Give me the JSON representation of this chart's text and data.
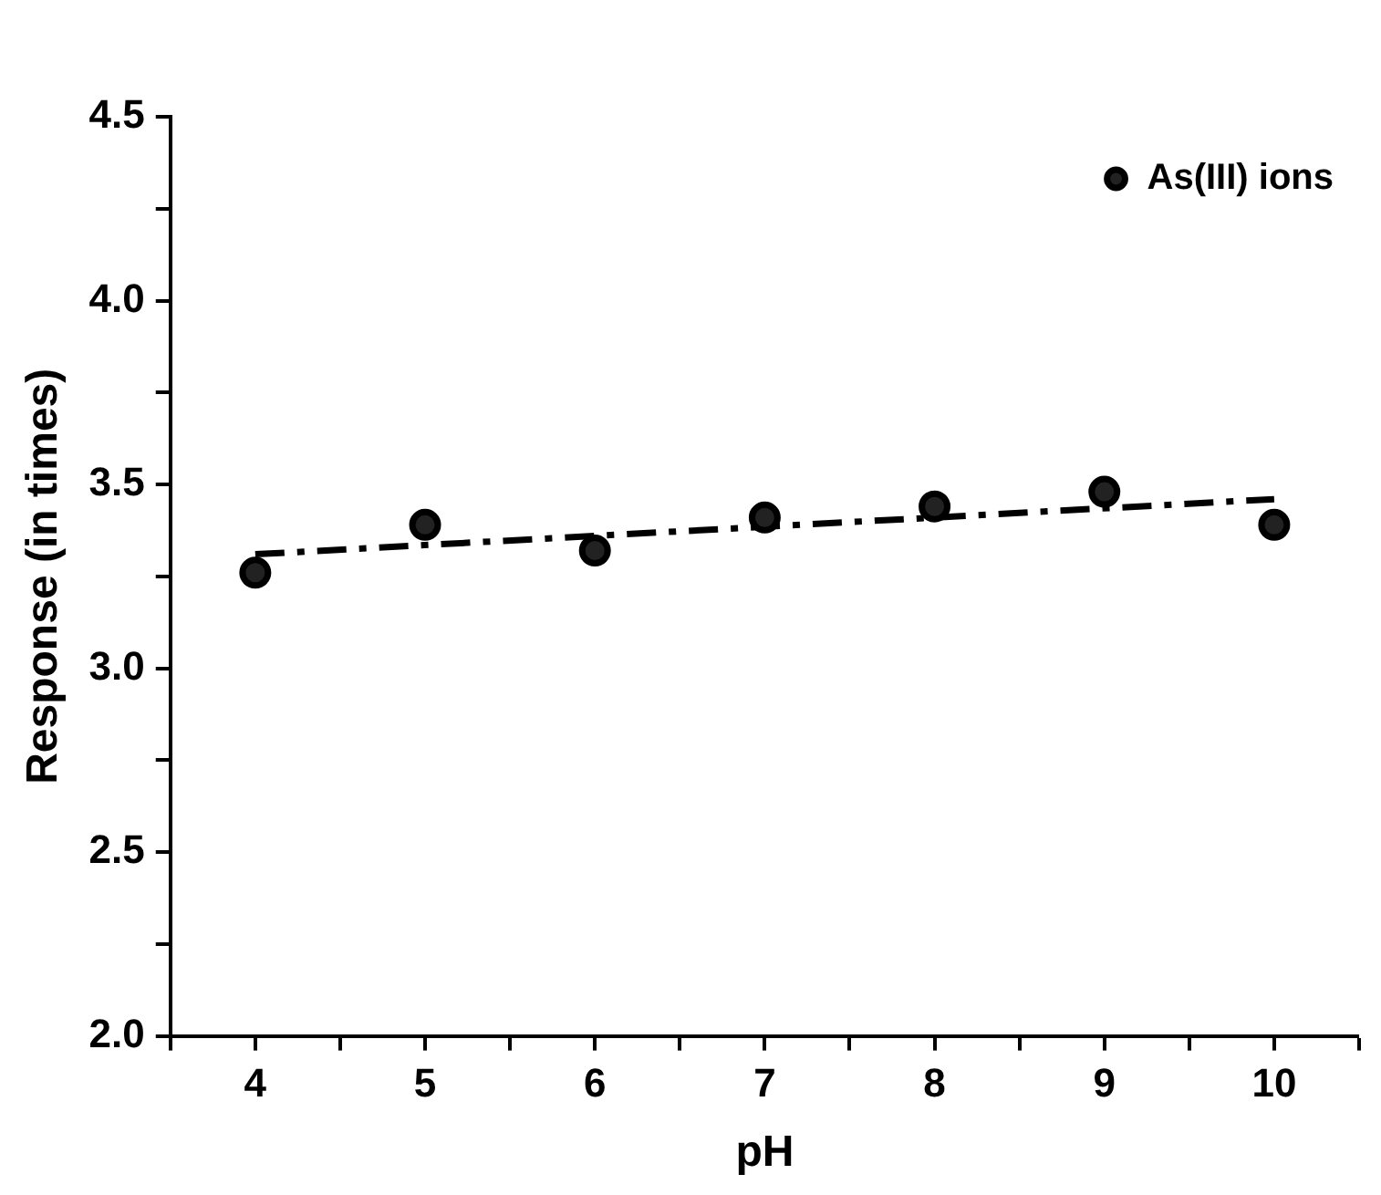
{
  "chart_data": {
    "type": "scatter",
    "xlabel": "pH",
    "ylabel": "Response (in times)",
    "x": [
      4,
      5,
      6,
      7,
      8,
      9,
      10
    ],
    "series": [
      {
        "name": "As(III) ions",
        "type": "scatter",
        "color": "#000000",
        "marker": "circle",
        "values": [
          3.26,
          3.39,
          3.32,
          3.41,
          3.44,
          3.48,
          3.39
        ]
      },
      {
        "type": "line",
        "color": "#000000",
        "line_style": "dashed",
        "marker": "none",
        "x": [
          4,
          10
        ],
        "values": [
          3.31,
          3.46
        ]
      }
    ],
    "xlim": [
      3.5,
      10.5
    ],
    "xticks": [
      {
        "value": 3.5,
        "label": null
      },
      4,
      {
        "value": 4.5,
        "label": null
      },
      5,
      {
        "value": 5.5,
        "label": null
      },
      6,
      {
        "value": 6.5,
        "label": null
      },
      7,
      {
        "value": 7.5,
        "label": null
      },
      8,
      {
        "value": 8.5,
        "label": null
      },
      9,
      {
        "value": 9.5,
        "label": null
      },
      10,
      {
        "value": 10.5,
        "label": null
      }
    ],
    "ylim": [
      2.0,
      4.5
    ],
    "yticks": [
      {
        "value": 2.0,
        "label": "2.0"
      },
      {
        "value": 2.25,
        "label": null
      },
      {
        "value": 2.5,
        "label": "2.5"
      },
      {
        "value": 2.75,
        "label": null
      },
      {
        "value": 3.0,
        "label": "3.0"
      },
      {
        "value": 3.25,
        "label": null
      },
      {
        "value": 3.5,
        "label": "3.5"
      },
      {
        "value": 3.75,
        "label": null
      },
      {
        "value": 4.0,
        "label": "4.0"
      },
      {
        "value": 4.25,
        "label": null
      },
      {
        "value": 4.5,
        "label": "4.5"
      }
    ],
    "grid": false,
    "legend": "top right"
  }
}
